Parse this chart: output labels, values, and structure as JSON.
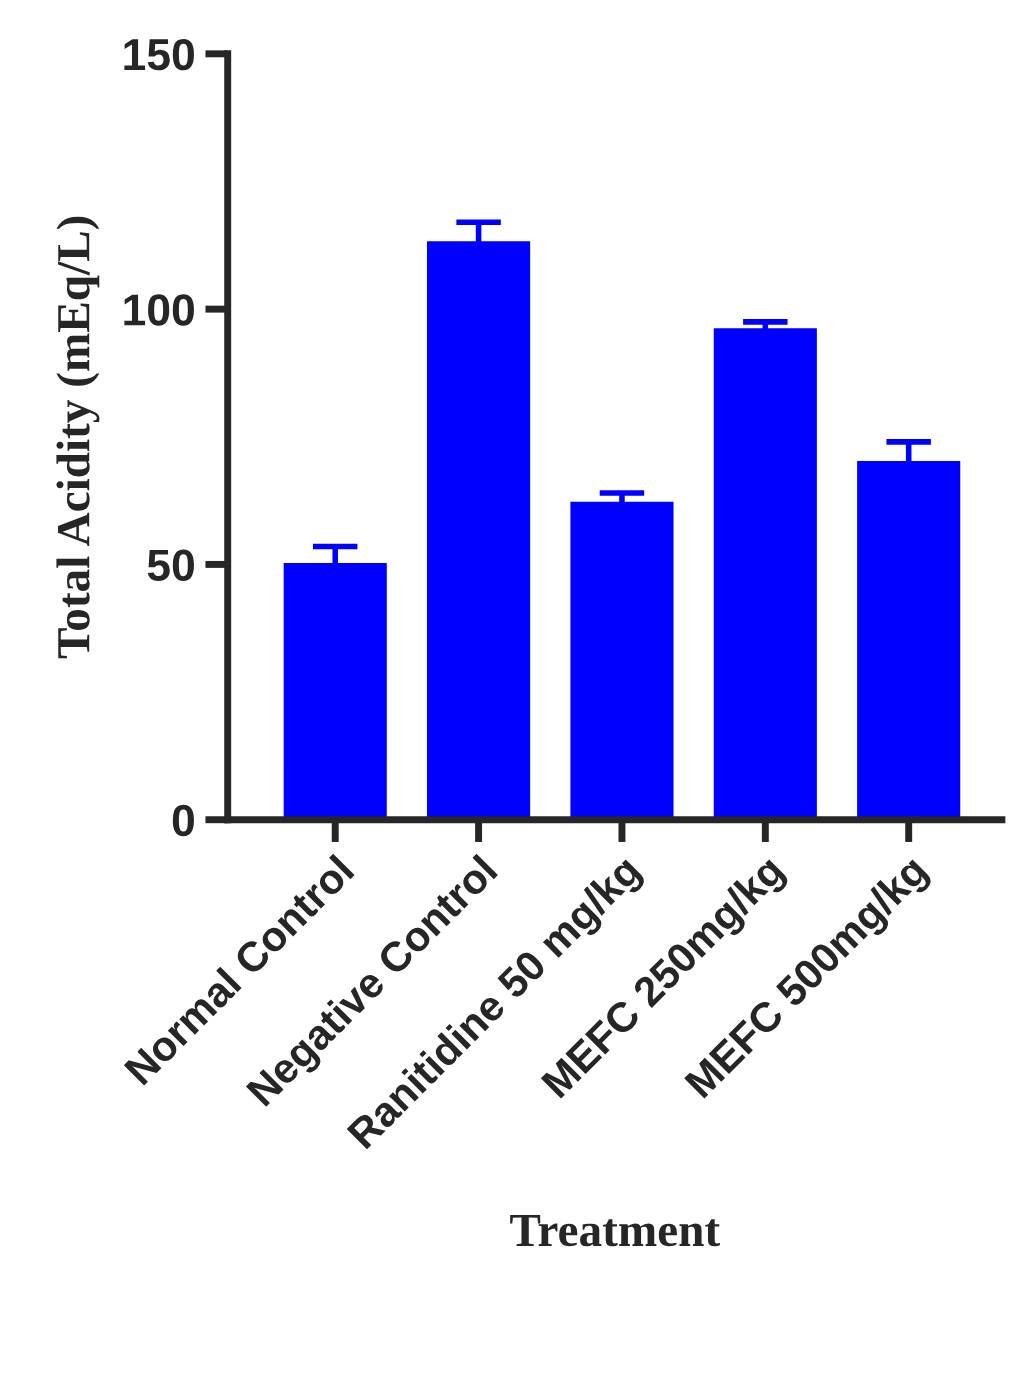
{
  "chart_data": {
    "type": "bar",
    "xlabel": "Treatment",
    "ylabel": "Total Acidity (mEq/L)",
    "categories": [
      "Normal Control",
      "Negative Control",
      "Ranitidine 50 mg/kg",
      "MEFC 250mg/kg",
      "MEFC 500mg/kg"
    ],
    "values": [
      50,
      113,
      62,
      96,
      70
    ],
    "errors": [
      3.5,
      4,
      2,
      1.5,
      4
    ],
    "color": "#0000ff",
    "ylim": [
      0,
      150
    ],
    "yticks": [
      0,
      50,
      100,
      150
    ],
    "grid": false,
    "legend": false
  }
}
